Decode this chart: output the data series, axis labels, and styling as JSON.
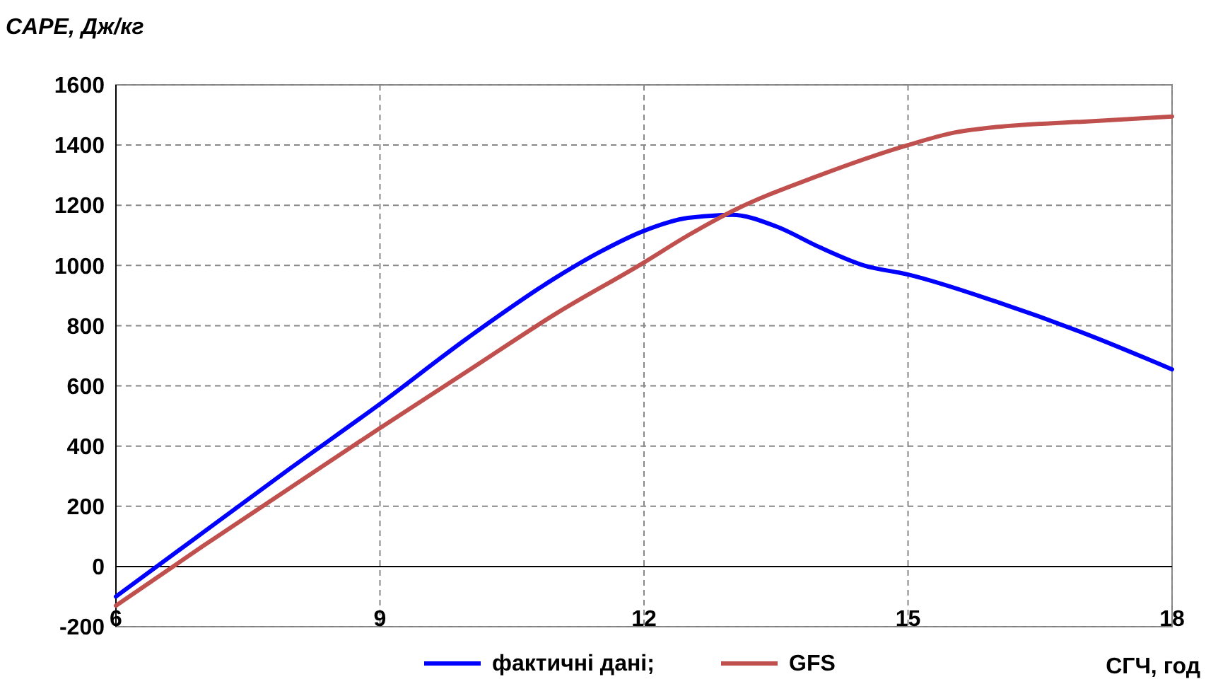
{
  "chart_data": {
    "type": "line",
    "ylabel": "CAPE, Дж/кг",
    "xlabel": "СГЧ, год",
    "xlim": [
      6,
      18
    ],
    "xticks": [
      6,
      9,
      12,
      15,
      18
    ],
    "ylim": [
      -200,
      1600
    ],
    "yticks": [
      -200,
      0,
      200,
      400,
      600,
      800,
      1000,
      1200,
      1400,
      1600
    ],
    "grid": true,
    "legend": "bottom",
    "line_style": "solid",
    "series": [
      {
        "name": "фактичні дані;",
        "color": "#0000ff",
        "x": [
          6,
          7,
          8,
          9,
          10,
          11,
          11.5,
          12,
          12.5,
          13,
          13.5,
          14,
          14.5,
          15,
          16,
          17,
          18
        ],
        "values": [
          -100,
          115,
          330,
          540,
          760,
          960,
          1045,
          1115,
          1158,
          1168,
          1130,
          1060,
          1000,
          970,
          880,
          775,
          655
        ]
      },
      {
        "name": "GFS",
        "color": "#c0504d",
        "x": [
          6,
          7,
          8,
          9,
          10,
          11,
          12,
          12.5,
          13,
          14,
          15,
          15.5,
          16,
          17,
          18
        ],
        "values": [
          -130,
          70,
          265,
          460,
          650,
          840,
          1010,
          1100,
          1180,
          1300,
          1400,
          1440,
          1460,
          1478,
          1495
        ]
      }
    ]
  }
}
